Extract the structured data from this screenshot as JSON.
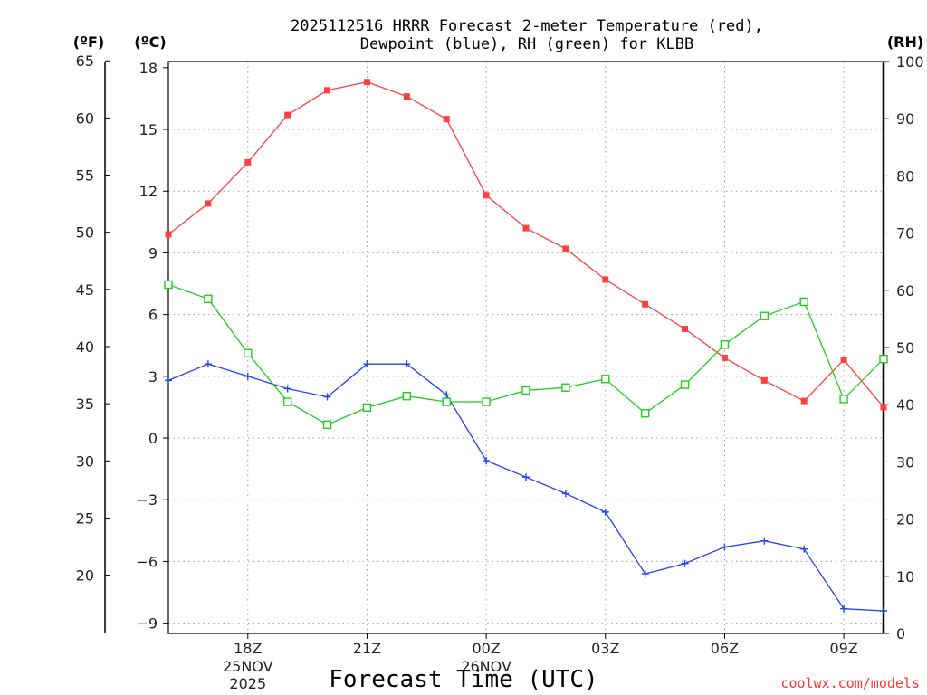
{
  "chart_data": {
    "type": "line",
    "title_line1": "2025112516 HRRR Forecast 2-meter Temperature (red),",
    "title_line2": "Dewpoint (blue), RH (green) for KLBB",
    "xlabel": "Forecast Time (UTC)",
    "credit": "coolwx.com/models",
    "unit_labels": {
      "fahrenheit": "(ºF)",
      "celsius": "(ºC)",
      "rh": "(RH)"
    },
    "x_range": [
      16,
      34
    ],
    "x_ticks": [
      {
        "x": 18,
        "label": "18Z"
      },
      {
        "x": 21,
        "label": "21Z"
      },
      {
        "x": 24,
        "label": "00Z"
      },
      {
        "x": 27,
        "label": "03Z"
      },
      {
        "x": 30,
        "label": "06Z"
      },
      {
        "x": 33,
        "label": "09Z"
      }
    ],
    "date_labels": [
      {
        "x": 18,
        "line1": "25NOV",
        "line2": "2025"
      },
      {
        "x": 24,
        "line1": "26NOV",
        "line2": ""
      }
    ],
    "y_celsius": {
      "range": [
        -9.5,
        18.3
      ],
      "ticks": [
        18,
        15,
        12,
        9,
        6,
        3,
        0,
        -3,
        -6,
        -9
      ],
      "tick_labels": [
        "18",
        "15",
        "12",
        "9",
        "6",
        "3",
        "0",
        "−3",
        "−6",
        "−9"
      ]
    },
    "y_fahrenheit": {
      "ticks": [
        65,
        60,
        55,
        50,
        45,
        40,
        35,
        30,
        25,
        20
      ],
      "tick_labels": [
        "65",
        "60",
        "55",
        "50",
        "45",
        "40",
        "35",
        "30",
        "25",
        "20"
      ]
    },
    "y_rh": {
      "range": [
        0,
        100
      ],
      "ticks": [
        100,
        90,
        80,
        70,
        60,
        50,
        40,
        30,
        20,
        10,
        0
      ],
      "tick_labels": [
        "100",
        "90",
        "80",
        "70",
        "60",
        "50",
        "40",
        "30",
        "20",
        "10",
        "0"
      ]
    },
    "x": [
      16,
      17,
      18,
      19,
      20,
      21,
      22,
      23,
      24,
      25,
      26,
      27,
      28,
      29,
      30,
      31,
      32,
      33,
      34
    ],
    "series": [
      {
        "name": "Temperature",
        "axis": "celsius",
        "color": "#ff4040",
        "marker": "filled-square",
        "values": [
          9.9,
          11.4,
          13.4,
          15.7,
          16.9,
          17.3,
          16.6,
          15.5,
          11.8,
          10.2,
          9.2,
          7.7,
          6.5,
          5.3,
          3.9,
          2.8,
          1.8,
          3.8,
          1.5
        ]
      },
      {
        "name": "Dewpoint",
        "axis": "celsius",
        "color": "#2244ee",
        "marker": "plus",
        "values": [
          2.8,
          3.6,
          3.0,
          2.4,
          2.0,
          3.6,
          3.6,
          2.1,
          -1.1,
          -1.9,
          -2.7,
          -3.6,
          -6.6,
          -6.1,
          -5.3,
          -5.0,
          -5.4,
          -8.3,
          -8.4
        ]
      },
      {
        "name": "RH",
        "axis": "rh",
        "color": "#22cc22",
        "marker": "open-square",
        "values": [
          61,
          58.5,
          49,
          40.5,
          36.5,
          39.5,
          41.5,
          40.5,
          40.5,
          42.5,
          43,
          44.5,
          38.5,
          43.5,
          50.5,
          55.5,
          58,
          41,
          48
        ]
      }
    ]
  }
}
